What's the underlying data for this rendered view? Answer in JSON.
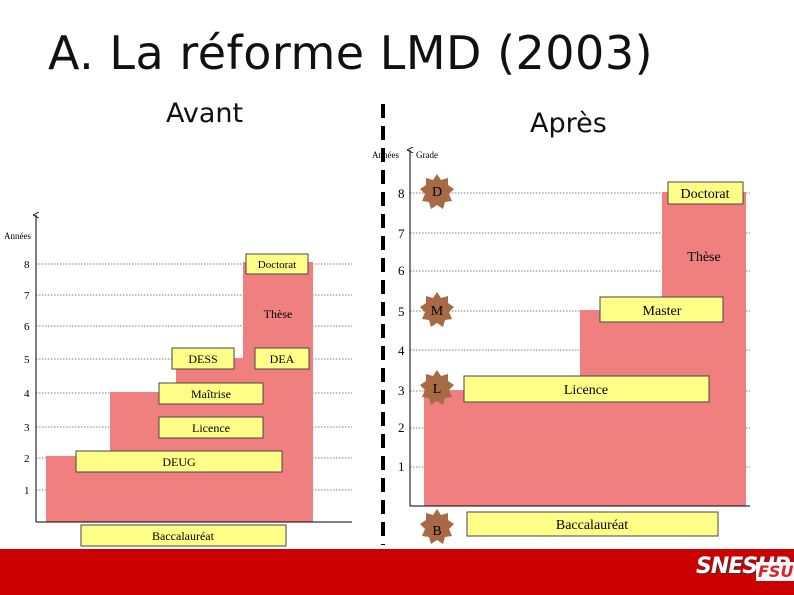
{
  "title": "A. La réforme LMD (2003)",
  "left_heading": "Avant",
  "right_heading": "Après",
  "before": {
    "axis_label": "Années",
    "ticks": [
      "1",
      "2",
      "3",
      "4",
      "5",
      "6",
      "7",
      "8"
    ],
    "scrolls": {
      "bac": "Baccalauréat",
      "deug": "DEUG",
      "licence": "Licence",
      "maitrise": "Maîtrise",
      "dess": "DESS",
      "dea": "DEA",
      "doctorat": "Doctorat"
    },
    "these": "Thèse"
  },
  "after": {
    "axis_years_label": "Années",
    "axis_grade_label": "Grade",
    "ticks": [
      "1",
      "2",
      "3",
      "4",
      "5",
      "6",
      "7",
      "8"
    ],
    "grades": {
      "b": "B",
      "l": "L",
      "m": "M",
      "d": "D"
    },
    "scrolls": {
      "bac": "Baccalauréat",
      "licence": "Licence",
      "master": "Master",
      "doctorat": "Doctorat"
    },
    "these": "Thèse"
  },
  "logo": {
    "main": "SNESUP",
    "sub": "FSU"
  },
  "colors": {
    "fill": "#f08080",
    "scroll": "#ffff88",
    "star": "#a86a44",
    "band": "#cc0000"
  }
}
